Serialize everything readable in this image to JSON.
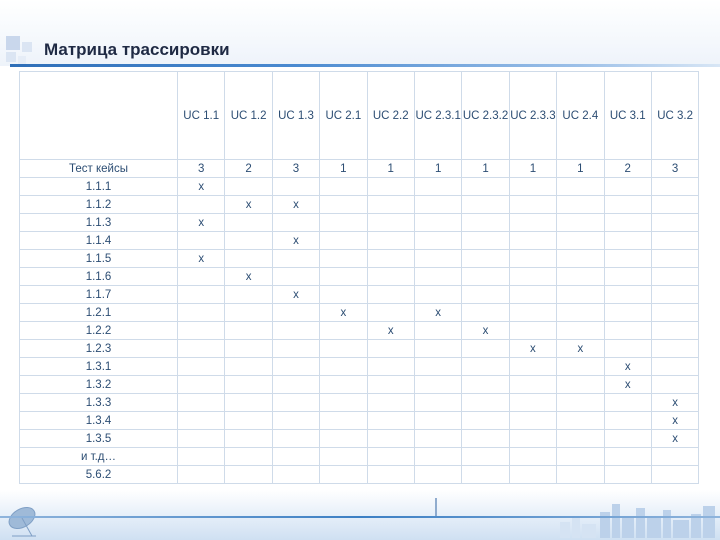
{
  "title": "Матрица трассировки",
  "header": {
    "corner": "",
    "columns": [
      "UC 1.1",
      "UC 1.2",
      "UC 1.3",
      "UC 2.1",
      "UC 2.2",
      "UC 2.3.1",
      "UC 2.3.2",
      "UC 2.3.3",
      "UC 2.4",
      "UC 3.1",
      "UC 3.2"
    ]
  },
  "totals": {
    "label": "Тест кейсы",
    "values": [
      "3",
      "2",
      "3",
      "1",
      "1",
      "1",
      "1",
      "1",
      "1",
      "2",
      "3"
    ]
  },
  "rows": [
    {
      "label": "1.1.1",
      "marks": [
        0
      ]
    },
    {
      "label": "1.1.2",
      "marks": [
        1,
        2
      ]
    },
    {
      "label": "1.1.3",
      "marks": [
        0
      ]
    },
    {
      "label": "1.1.4",
      "marks": [
        2
      ]
    },
    {
      "label": "1.1.5",
      "marks": [
        0
      ]
    },
    {
      "label": "1.1.6",
      "marks": [
        1
      ]
    },
    {
      "label": "1.1.7",
      "marks": [
        2
      ]
    },
    {
      "label": "1.2.1",
      "marks": [
        3,
        5
      ]
    },
    {
      "label": "1.2.2",
      "marks": [
        4,
        6
      ]
    },
    {
      "label": "1.2.3",
      "marks": [
        7,
        8
      ]
    },
    {
      "label": "1.3.1",
      "marks": [
        9
      ]
    },
    {
      "label": "1.3.2",
      "marks": [
        9
      ]
    },
    {
      "label": "1.3.3",
      "marks": [
        10
      ]
    },
    {
      "label": "1.3.4",
      "marks": [
        10
      ]
    },
    {
      "label": "1.3.5",
      "marks": [
        10
      ]
    },
    {
      "label": "и т.д…",
      "marks": []
    },
    {
      "label": "5.6.2",
      "marks": []
    }
  ],
  "mark_symbol": "x",
  "colors": {
    "title": "#1f2a44",
    "text": "#2c4d73",
    "grid": "#cfdbe9",
    "accent": "#2f6fb8"
  }
}
